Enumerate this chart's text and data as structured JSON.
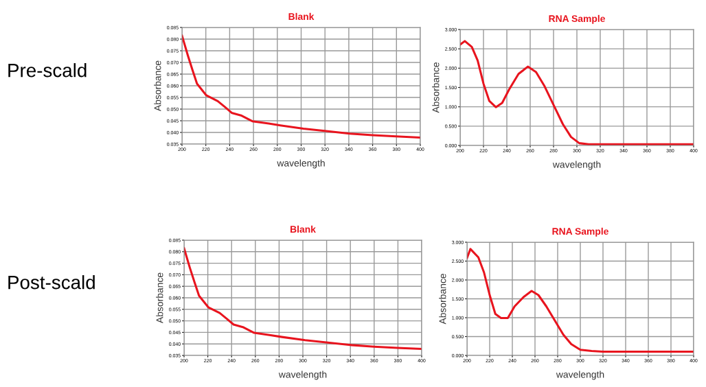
{
  "chart_data": [
    {
      "type": "line",
      "title": "Blank",
      "xlabel": "wavelength",
      "ylabel": "Absorbance",
      "annotations": [
        "Pre-scald"
      ],
      "series": [
        {
          "color": "#e8141e",
          "x": [
            200,
            204.9,
            208.7,
            212.6,
            220.4,
            230,
            236,
            241.7,
            249.5,
            259,
            272.8,
            282.5,
            301.9,
            321,
            340.8,
            360,
            379.6,
            400
          ],
          "values": [
            0.0815,
            0.073,
            0.0669,
            0.0609,
            0.0559,
            0.0534,
            0.0509,
            0.0484,
            0.0473,
            0.0448,
            0.0438,
            0.043,
            0.0416,
            0.0406,
            0.0395,
            0.0388,
            0.0383,
            0.0378
          ]
        }
      ],
      "xlim": [
        200,
        400
      ],
      "xticks": [
        200,
        220,
        240,
        260,
        280,
        300,
        320,
        340,
        360,
        380,
        400
      ],
      "ylim": [
        0.035,
        0.085
      ],
      "yticks": [
        0.035,
        {
          "value": 0.04,
          "label": "0.040"
        },
        0.045,
        {
          "value": 0.05,
          "label": "0.050"
        },
        0.055,
        {
          "value": 0.06,
          "label": "0.060"
        },
        0.065,
        {
          "value": 0.07,
          "label": "0.070"
        },
        0.075,
        {
          "value": 0.08,
          "label": "0.080"
        },
        0.085
      ],
      "grid": true
    },
    {
      "type": "line",
      "title": "RNA Sample",
      "xlabel": "wavelength",
      "ylabel": "Absorbance",
      "series": [
        {
          "color": "#e8141e",
          "x": [
            200,
            204,
            210,
            215,
            220,
            225,
            230.6,
            236,
            242,
            250,
            258,
            265,
            272,
            280,
            288,
            295,
            302,
            310,
            330,
            360,
            400
          ],
          "values": [
            2.61,
            2.7,
            2.55,
            2.2,
            1.6,
            1.15,
            0.99,
            1.1,
            1.45,
            1.85,
            2.04,
            1.9,
            1.55,
            1.05,
            0.55,
            0.22,
            0.06,
            0.03,
            0.03,
            0.03,
            0.03
          ]
        }
      ],
      "xlim": [
        200,
        400
      ],
      "xticks": [
        200,
        220,
        240,
        260,
        280,
        300,
        320,
        340,
        360,
        380,
        400
      ],
      "ylim": [
        0,
        3
      ],
      "yticks": [
        {
          "value": 0,
          "label": "0.000"
        },
        {
          "value": 0.5,
          "label": "0.500"
        },
        {
          "value": 1,
          "label": "1.000"
        },
        {
          "value": 1.5,
          "label": "1.500"
        },
        {
          "value": 2,
          "label": "2.000"
        },
        {
          "value": 2.5,
          "label": "2.500"
        },
        {
          "value": 3,
          "label": "3.000"
        }
      ],
      "grid": true
    },
    {
      "type": "line",
      "title": "Blank",
      "xlabel": "wavelength",
      "ylabel": "Absorbance",
      "annotations": [
        "Post-scald"
      ],
      "series": [
        {
          "color": "#e8141e",
          "x": [
            200,
            204.9,
            208.7,
            212.6,
            220.4,
            230,
            236,
            241.7,
            249.5,
            259,
            272.8,
            282.5,
            301.9,
            321,
            340.8,
            360,
            379.6,
            400
          ],
          "values": [
            0.0815,
            0.073,
            0.0669,
            0.0609,
            0.0559,
            0.0534,
            0.0509,
            0.0484,
            0.0473,
            0.0448,
            0.0438,
            0.043,
            0.0416,
            0.0406,
            0.0395,
            0.0388,
            0.0383,
            0.0378
          ]
        }
      ],
      "xlim": [
        200,
        400
      ],
      "xticks": [
        200,
        220,
        240,
        260,
        280,
        300,
        320,
        340,
        360,
        380,
        400
      ],
      "ylim": [
        0.035,
        0.085
      ],
      "yticks": [
        0.035,
        {
          "value": 0.04,
          "label": "0.040"
        },
        0.045,
        {
          "value": 0.05,
          "label": "0.050"
        },
        0.055,
        {
          "value": 0.06,
          "label": "0.060"
        },
        0.065,
        {
          "value": 0.07,
          "label": "0.070"
        },
        0.075,
        {
          "value": 0.08,
          "label": "0.080"
        },
        0.085
      ],
      "grid": true
    },
    {
      "type": "line",
      "title": "RNA Sample",
      "xlabel": "wavelength",
      "ylabel": "Absorbance",
      "series": [
        {
          "color": "#e8141e",
          "x": [
            200,
            203,
            210,
            215,
            220,
            225,
            230,
            236,
            242,
            250,
            257,
            263,
            270,
            278,
            285,
            292,
            300,
            310,
            320,
            340,
            360,
            400
          ],
          "values": [
            2.58,
            2.82,
            2.6,
            2.2,
            1.6,
            1.1,
            0.99,
            0.99,
            1.3,
            1.55,
            1.71,
            1.6,
            1.3,
            0.9,
            0.55,
            0.3,
            0.15,
            0.12,
            0.1,
            0.1,
            0.1,
            0.1
          ]
        }
      ],
      "xlim": [
        200,
        400
      ],
      "xticks": [
        200,
        220,
        240,
        260,
        280,
        300,
        320,
        340,
        360,
        380,
        400
      ],
      "ylim": [
        0,
        3
      ],
      "yticks": [
        {
          "value": 0,
          "label": "0.000"
        },
        {
          "value": 0.5,
          "label": "0.500"
        },
        {
          "value": 1,
          "label": "1.000"
        },
        {
          "value": 1.5,
          "label": "1.500"
        },
        {
          "value": 2,
          "label": "2.000"
        },
        {
          "value": 2.5,
          "label": "2.500"
        },
        {
          "value": 3,
          "label": "3.000"
        }
      ],
      "grid": true
    }
  ]
}
